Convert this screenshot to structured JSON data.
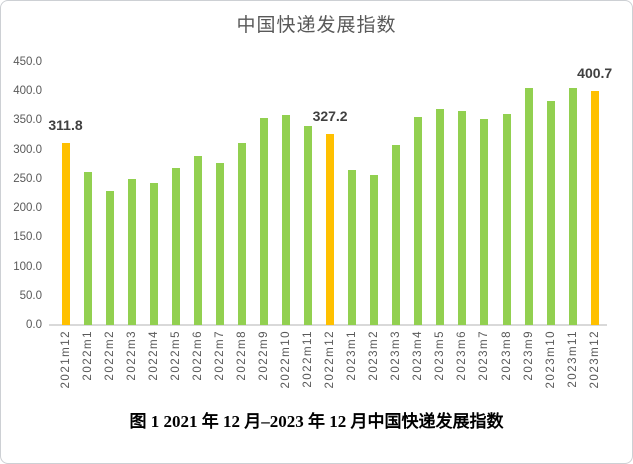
{
  "figure": {
    "caption": "图 1 2021 年 12 月–2023 年 12 月中国快递发展指数"
  },
  "chart_data": {
    "type": "bar",
    "title": "中国快递发展指数",
    "categories": [
      "2021m12",
      "2022m1",
      "2022m2",
      "2022m3",
      "2022m4",
      "2022m5",
      "2022m6",
      "2022m7",
      "2022m8",
      "2022m9",
      "2022m10",
      "2022m11",
      "2022m12",
      "2023m1",
      "2023m2",
      "2023m3",
      "2023m4",
      "2023m5",
      "2023m6",
      "2023m7",
      "2023m8",
      "2023m9",
      "2023m10",
      "2023m11",
      "2023m12"
    ],
    "values": [
      311.8,
      261,
      230,
      250,
      243,
      269,
      290,
      277,
      311,
      354,
      359,
      340,
      327.2,
      266,
      256,
      308,
      356,
      370,
      366,
      352,
      361,
      405,
      384,
      406,
      400.7
    ],
    "data_labels": [
      {
        "index": 0,
        "text": "311.8"
      },
      {
        "index": 12,
        "text": "327.2"
      },
      {
        "index": 24,
        "text": "400.7"
      }
    ],
    "highlight_indices": [
      0,
      12,
      24
    ],
    "colors": {
      "bar": "#92D050",
      "highlight": "#FFC000",
      "axis_line": "#D9D9D9",
      "tick_text": "#595959",
      "data_label_text": "#404040",
      "title_text": "#595959"
    },
    "ylim": [
      0,
      450
    ],
    "ytick_step": 50,
    "ytick_labels": [
      "0.0",
      "50.0",
      "100.0",
      "150.0",
      "200.0",
      "250.0",
      "300.0",
      "350.0",
      "400.0",
      "450.0"
    ],
    "grid": false,
    "legend": "none"
  }
}
